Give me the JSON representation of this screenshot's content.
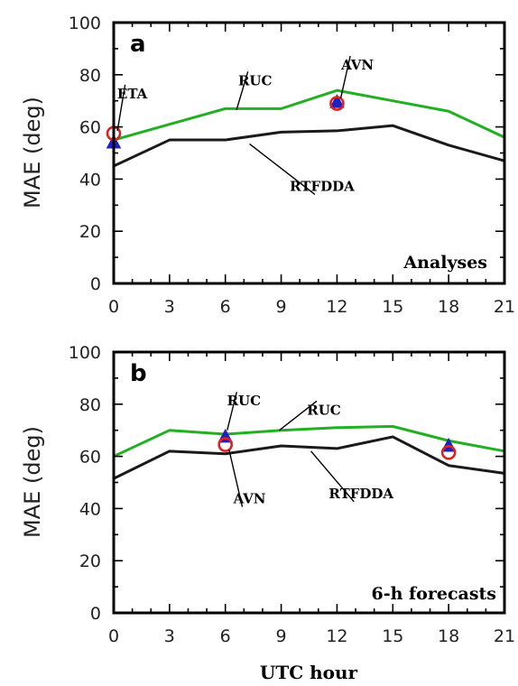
{
  "figure": {
    "xlabel": "UTC hour",
    "colors": {
      "RUC": "#22b022",
      "RTFDDA": "#1a1a1a",
      "ETA": "#e02020",
      "AVN": "#2020c0"
    }
  },
  "chart_data": [
    {
      "type": "line",
      "panel": "a",
      "caption": "Analyses",
      "ylabel": "MAE (deg)",
      "xlabel": "",
      "xlim": [
        0,
        21
      ],
      "ylim": [
        0,
        100
      ],
      "xticks": [
        0,
        3,
        6,
        9,
        12,
        15,
        18,
        21
      ],
      "yticks": [
        0,
        20,
        40,
        60,
        80,
        100
      ],
      "series": [
        {
          "name": "RUC",
          "color": "#22b022",
          "x": [
            0,
            3,
            6,
            9,
            12,
            15,
            18,
            21
          ],
          "y": [
            55,
            61,
            67,
            67,
            74,
            70,
            66,
            56
          ]
        },
        {
          "name": "RTFDDA",
          "color": "#1a1a1a",
          "x": [
            0,
            3,
            6,
            9,
            12,
            15,
            18,
            21
          ],
          "y": [
            45,
            55,
            55,
            58,
            58.5,
            60.5,
            53,
            47
          ]
        }
      ],
      "markers": [
        {
          "name": "ETA",
          "shape": "circle",
          "color": "#e02020",
          "x": 0,
          "y": 57.5
        },
        {
          "name": "ETA",
          "shape": "triangle",
          "color": "#2020c0",
          "x": 0,
          "y": 54
        },
        {
          "name": "AVN",
          "shape": "circle",
          "color": "#e02020",
          "x": 12,
          "y": 69
        },
        {
          "name": "AVN",
          "shape": "triangle",
          "color": "#2020c0",
          "x": 12,
          "y": 69.5
        }
      ],
      "annotations": [
        {
          "text": "ETA",
          "tx": 1.0,
          "ty": 71,
          "ax": 0.2,
          "ay": 58.5
        },
        {
          "text": "RUC",
          "tx": 7.6,
          "ty": 76,
          "ax": 6.6,
          "ay": 66.5
        },
        {
          "text": "AVN",
          "tx": 13.1,
          "ty": 82,
          "ax": 12.2,
          "ay": 71
        },
        {
          "text": "RTFDDA",
          "tx": 11.2,
          "ty": 35.5,
          "ax": 7.3,
          "ay": 53.5
        }
      ]
    },
    {
      "type": "line",
      "panel": "b",
      "caption": "6-h forecasts",
      "ylabel": "MAE (deg)",
      "xlabel": "UTC hour",
      "xlim": [
        0,
        21
      ],
      "ylim": [
        0,
        100
      ],
      "xticks": [
        0,
        3,
        6,
        9,
        12,
        15,
        18,
        21
      ],
      "yticks": [
        0,
        20,
        40,
        60,
        80,
        100
      ],
      "series": [
        {
          "name": "RUC",
          "color": "#22b022",
          "x": [
            0,
            3,
            6,
            9,
            12,
            15,
            18,
            21
          ],
          "y": [
            60,
            70,
            68.5,
            70,
            71,
            71.5,
            66,
            62
          ]
        },
        {
          "name": "RTFDDA",
          "color": "#1a1a1a",
          "x": [
            0,
            3,
            6,
            9,
            12,
            15,
            18,
            21
          ],
          "y": [
            51.5,
            62,
            61,
            64,
            63,
            67.5,
            56.5,
            53.5
          ]
        }
      ],
      "markers": [
        {
          "name": "RUC",
          "shape": "triangle",
          "color": "#2020c0",
          "x": 6,
          "y": 67.5
        },
        {
          "name": "AVN",
          "shape": "circle",
          "color": "#e02020",
          "x": 6,
          "y": 64.5
        },
        {
          "name": "",
          "shape": "circle",
          "color": "#e02020",
          "x": 18,
          "y": 61.5
        },
        {
          "name": "",
          "shape": "triangle",
          "color": "#2020c0",
          "x": 18,
          "y": 64
        }
      ],
      "annotations": [
        {
          "text": "RUC",
          "tx": 7.0,
          "ty": 79.5,
          "ax": 6.1,
          "ay": 70
        },
        {
          "text": "RUC",
          "tx": 11.3,
          "ty": 76,
          "ax": 8.9,
          "ay": 70
        },
        {
          "text": "AVN",
          "tx": 7.3,
          "ty": 42,
          "ax": 6.2,
          "ay": 62.5
        },
        {
          "text": "RTFDDA",
          "tx": 13.3,
          "ty": 44,
          "ax": 10.6,
          "ay": 62
        }
      ]
    }
  ]
}
